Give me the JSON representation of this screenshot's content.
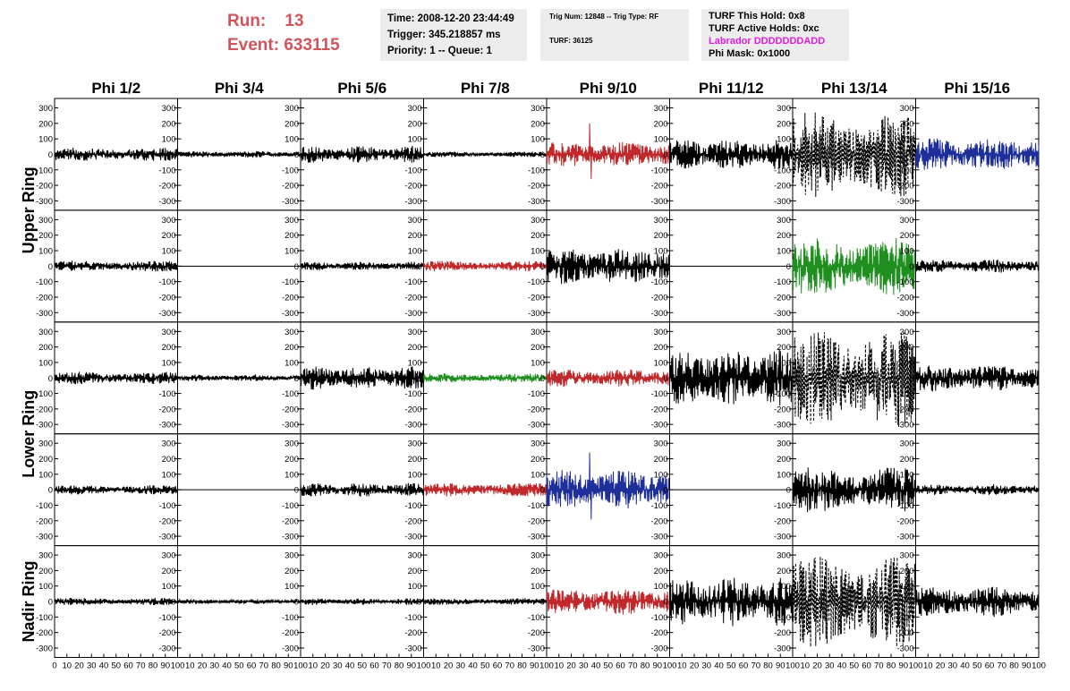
{
  "header": {
    "run_label": "Run:",
    "run_value": "13",
    "event_label": "Event:",
    "event_value": "633115"
  },
  "time_box": {
    "time": "Time: 2008-12-20 23:44:49",
    "trigger": "Trigger: 345.218857 ms",
    "priority": "Priority: 1 -- Queue: 1"
  },
  "trig_box": {
    "trig": "Trig Num: 12848 -- Trig Type: RF",
    "turf": "TURF: 36125"
  },
  "turf_box": {
    "this_hold": "TURF This Hold: 0x8",
    "active_holds": "TURF Active Holds: 0xc",
    "labrador": "Labrador DDDDDDDADD",
    "phi_mask": "Phi Mask: 0x1000"
  },
  "colors": {
    "run_text": "#d2545b",
    "labrador_text": "#e01ee0",
    "box_background": "#ececec",
    "trace_black": "#000000",
    "trace_red": "#c0282b",
    "trace_green": "#1f8f1f",
    "trace_blue": "#1f2f9a"
  },
  "chart_data": {
    "type": "line",
    "columns": [
      "Phi 1/2",
      "Phi 3/4",
      "Phi 5/6",
      "Phi 7/8",
      "Phi 9/10",
      "Phi 11/12",
      "Phi 13/14",
      "Phi 15/16"
    ],
    "row_labels": [
      {
        "label": "Upper Ring",
        "rows": [
          0,
          1
        ]
      },
      {
        "label": "Lower Ring",
        "rows": [
          2,
          3
        ]
      },
      {
        "label": "Nadir Ring",
        "rows": [
          4,
          4
        ]
      }
    ],
    "ylim": [
      -350,
      350
    ],
    "y_ticks": [
      300,
      200,
      100,
      0,
      -100,
      -200,
      -300
    ],
    "y_tick_labels": [
      "300",
      "200",
      "100",
      "0",
      "-100",
      "-200",
      "-300"
    ],
    "xlim": [
      0,
      100
    ],
    "x_tick_labels_first": [
      "0",
      "10",
      "20",
      "30",
      "40",
      "50",
      "60",
      "70",
      "80",
      "90",
      "100"
    ],
    "x_tick_labels": [
      "10",
      "20",
      "30",
      "40",
      "50",
      "60",
      "70",
      "80",
      "90",
      "100"
    ],
    "grid": false,
    "panels": [
      [
        {
          "color": "black",
          "amp": 45,
          "style": "solid"
        },
        {
          "color": "black",
          "amp": 22,
          "style": "solid"
        },
        {
          "color": "black",
          "amp": 55,
          "style": "solid"
        },
        {
          "color": "black",
          "amp": 18,
          "style": "solid"
        },
        {
          "color": "red",
          "amp": 85,
          "style": "solid",
          "spike": 200
        },
        {
          "color": "black",
          "amp": 100,
          "style": "solid"
        },
        {
          "color": "black",
          "amp": 280,
          "style": "dashed"
        },
        {
          "color": "blue",
          "amp": 110,
          "style": "solid"
        }
      ],
      [
        {
          "color": "black",
          "amp": 35,
          "style": "solid"
        },
        {
          "color": "black",
          "amp": 0,
          "style": "solid"
        },
        {
          "color": "black",
          "amp": 28,
          "style": "solid"
        },
        {
          "color": "red",
          "amp": 35,
          "style": "solid"
        },
        {
          "color": "black",
          "amp": 120,
          "style": "solid"
        },
        {
          "color": "black",
          "amp": 0,
          "style": "solid"
        },
        {
          "color": "green",
          "amp": 190,
          "style": "solid"
        },
        {
          "color": "black",
          "amp": 45,
          "style": "solid"
        }
      ],
      [
        {
          "color": "black",
          "amp": 40,
          "style": "solid"
        },
        {
          "color": "black",
          "amp": 22,
          "style": "solid"
        },
        {
          "color": "black",
          "amp": 75,
          "style": "solid"
        },
        {
          "color": "green",
          "amp": 30,
          "style": "solid"
        },
        {
          "color": "red",
          "amp": 60,
          "style": "solid"
        },
        {
          "color": "black",
          "amp": 190,
          "style": "solid"
        },
        {
          "color": "black",
          "amp": 320,
          "style": "dashed"
        },
        {
          "color": "black",
          "amp": 90,
          "style": "solid"
        }
      ],
      [
        {
          "color": "black",
          "amp": 30,
          "style": "solid"
        },
        {
          "color": "black",
          "amp": 0,
          "style": "solid"
        },
        {
          "color": "black",
          "amp": 45,
          "style": "solid"
        },
        {
          "color": "red",
          "amp": 45,
          "style": "solid"
        },
        {
          "color": "blue",
          "amp": 130,
          "style": "solid",
          "spike": 240
        },
        {
          "color": "black",
          "amp": 0,
          "style": "solid"
        },
        {
          "color": "black",
          "amp": 150,
          "style": "solid"
        },
        {
          "color": "black",
          "amp": 35,
          "style": "solid"
        }
      ],
      [
        {
          "color": "black",
          "amp": 25,
          "style": "solid"
        },
        {
          "color": "black",
          "amp": 15,
          "style": "solid"
        },
        {
          "color": "black",
          "amp": 22,
          "style": "solid"
        },
        {
          "color": "black",
          "amp": 22,
          "style": "solid"
        },
        {
          "color": "red",
          "amp": 85,
          "style": "solid"
        },
        {
          "color": "black",
          "amp": 160,
          "style": "solid"
        },
        {
          "color": "black",
          "amp": 300,
          "style": "dashed"
        },
        {
          "color": "black",
          "amp": 100,
          "style": "solid"
        }
      ]
    ]
  }
}
